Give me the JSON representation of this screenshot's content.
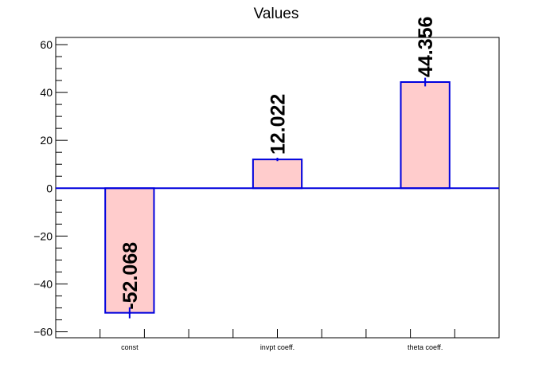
{
  "chart_data": {
    "type": "bar",
    "title": "Values",
    "xlabel": "",
    "ylabel": "",
    "categories": [
      "const",
      "invpt coeff.",
      "theta coeff."
    ],
    "values": [
      -52.068,
      12.022,
      44.356
    ],
    "value_labels": [
      "-52.068",
      "12.022",
      "44.356"
    ],
    "errors": [
      2.3,
      0.7,
      1.8
    ],
    "ylim": [
      -62.5,
      63
    ],
    "yticks": [
      -60,
      -40,
      -20,
      0,
      20,
      40,
      60
    ],
    "ytick_labels": [
      "−60",
      "−40",
      "−20",
      "0",
      "20",
      "40",
      "60"
    ],
    "grid": false,
    "legend": "none",
    "colors": {
      "bar_fill": "#ffcccc",
      "bar_edge": "#0000dd",
      "zero_line": "#0000dd",
      "axis": "#000000"
    }
  }
}
